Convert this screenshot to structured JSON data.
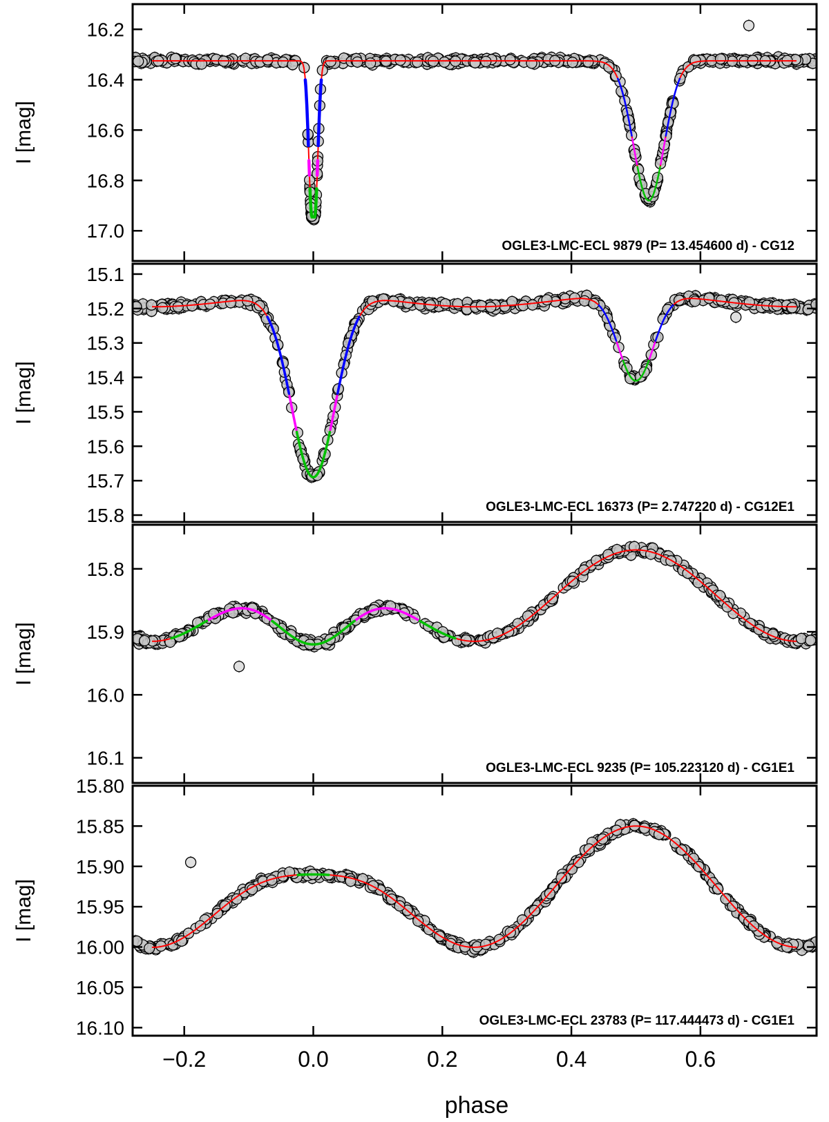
{
  "figure": {
    "xlabel": "phase"
  },
  "chart_data": [
    {
      "type": "scatter",
      "ylabel": "I [mag]",
      "title": "OGLE3-LMC-ECL 9879  (P= 13.454600 d) - CG12",
      "xlim": [
        -0.28,
        0.78
      ],
      "ylim": [
        16.1,
        17.12
      ],
      "yticks": [
        16.2,
        16.4,
        16.6,
        16.8,
        17.0
      ],
      "ytick_labels": [
        "16.2",
        "16.4",
        "16.6",
        "16.8",
        "17.0"
      ],
      "model": {
        "base": 16.325,
        "primary": {
          "center": 0.0,
          "depth": 0.62,
          "width": 0.006,
          "flat": 0.002
        },
        "secondary": {
          "center": 0.52,
          "depth": 0.555,
          "width": 0.028,
          "flat": 0.0
        }
      },
      "outliers": [
        {
          "x": 0.675,
          "y": 16.185
        }
      ],
      "series": [
        {
          "name": "observations",
          "color": "#808080"
        },
        {
          "name": "model fit (out of eclipse)",
          "color": "#ff0000"
        },
        {
          "name": "eclipse fit (upper)",
          "color": "#0000ff"
        },
        {
          "name": "eclipse fit (middle)",
          "color": "#ff00ff"
        },
        {
          "name": "eclipse fit (core)",
          "color": "#00c000"
        }
      ]
    },
    {
      "type": "scatter",
      "ylabel": "I [mag]",
      "title": "OGLE3-LMC-ECL 16373  (P= 2.747220 d) - CG12E1",
      "xlim": [
        -0.28,
        0.78
      ],
      "ylim": [
        15.07,
        15.82
      ],
      "yticks": [
        15.1,
        15.2,
        15.3,
        15.4,
        15.5,
        15.6,
        15.7,
        15.8
      ],
      "ytick_labels": [
        "15.1",
        "15.2",
        "15.3",
        "15.4",
        "15.5",
        "15.6",
        "15.7",
        "15.8"
      ],
      "model": {
        "base": 15.16,
        "primary": {
          "center": 0.0,
          "depth": 0.53,
          "width": 0.04,
          "flat": 0.0
        },
        "secondary": {
          "center": 0.5,
          "depth": 0.25,
          "width": 0.032,
          "flat": 0.0
        },
        "ellipsoidal": 0.07
      },
      "outliers": [
        {
          "x": 0.655,
          "y": 15.225
        }
      ],
      "series": [
        {
          "name": "observations",
          "color": "#808080"
        },
        {
          "name": "model fit (out of eclipse)",
          "color": "#ff0000"
        },
        {
          "name": "eclipse fit (upper)",
          "color": "#0000ff"
        },
        {
          "name": "eclipse fit (middle)",
          "color": "#ff00ff"
        },
        {
          "name": "eclipse fit (core)",
          "color": "#00c000"
        }
      ]
    },
    {
      "type": "scatter",
      "ylabel": "I [mag]",
      "title": "OGLE3-LMC-ECL 9235  (P= 105.223120 d) - CG1E1",
      "xlim": [
        -0.28,
        0.78
      ],
      "ylim": [
        15.73,
        16.14
      ],
      "yticks": [
        15.8,
        15.9,
        16.0,
        16.1
      ],
      "ytick_labels": [
        "15.8",
        "15.9",
        "16.0",
        "16.1"
      ],
      "model": {
        "max": 15.77,
        "primary": {
          "center": 0.0,
          "depth": 0.295,
          "width": 0.09
        },
        "secondary_min": 15.915
      },
      "outliers": [
        {
          "x": -0.115,
          "y": 15.955
        }
      ],
      "series": [
        {
          "name": "observations",
          "color": "#808080"
        },
        {
          "name": "model fit (out of eclipse)",
          "color": "#ff0000"
        },
        {
          "name": "eclipse fit (upper)",
          "color": "#0000ff"
        },
        {
          "name": "eclipse fit (middle)",
          "color": "#ff00ff"
        },
        {
          "name": "eclipse fit (core)",
          "color": "#00c000"
        }
      ]
    },
    {
      "type": "scatter",
      "ylabel": "I [mag]",
      "title": "OGLE3-LMC-ECL 23783  (P= 117.444473 d) - CG1E1",
      "xlim": [
        -0.28,
        0.78
      ],
      "ylim": [
        15.8,
        16.11
      ],
      "yticks": [
        15.8,
        15.85,
        15.9,
        15.95,
        16.0,
        16.05,
        16.1
      ],
      "ytick_labels": [
        "15.80",
        "15.85",
        "15.90",
        "15.95",
        "16.00",
        "16.05",
        "16.10"
      ],
      "model": {
        "max": 15.85,
        "primary": {
          "center": 0.0,
          "depth": 0.21,
          "width": 0.11
        },
        "secondary_min": 16.0
      },
      "outliers": [
        {
          "x": -0.19,
          "y": 15.895
        }
      ],
      "series": [
        {
          "name": "observations",
          "color": "#808080"
        },
        {
          "name": "model fit (out of eclipse)",
          "color": "#ff0000"
        },
        {
          "name": "eclipse fit (upper)",
          "color": "#0000ff"
        },
        {
          "name": "eclipse fit (middle)",
          "color": "#ff00ff"
        },
        {
          "name": "eclipse fit (core)",
          "color": "#00c000"
        }
      ]
    }
  ],
  "x_axis": {
    "ticks": [
      -0.2,
      0.0,
      0.2,
      0.4,
      0.6
    ],
    "tick_labels": [
      "−0.2",
      "0.0",
      "0.2",
      "0.4",
      "0.6"
    ]
  }
}
